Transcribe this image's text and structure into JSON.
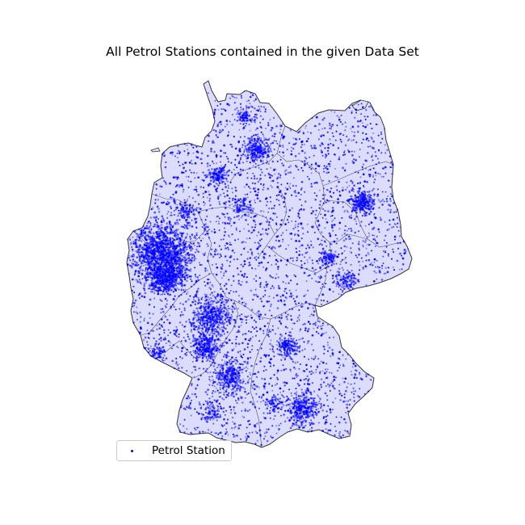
{
  "map": {
    "title": "All Petrol Stations contained in the given Data Set",
    "fill_color": "#dcdcff",
    "border_color": "#333333",
    "point_color": "#0000ff",
    "legend": {
      "label": "Petrol Station",
      "placement": "lower-left"
    }
  }
}
